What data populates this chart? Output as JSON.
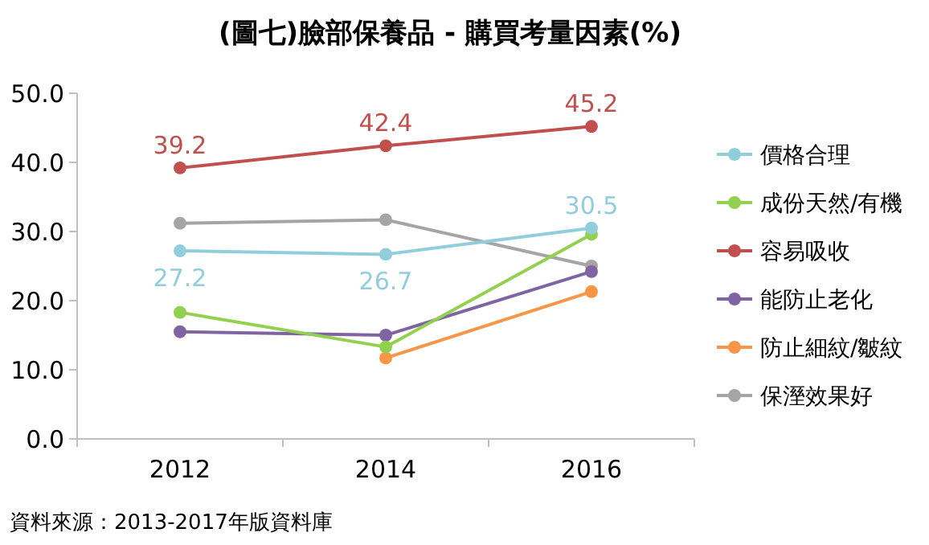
{
  "chart_data": {
    "type": "line",
    "title": "(圖七)臉部保養品 - 購買考量因素(%)",
    "categories": [
      "2012",
      "2014",
      "2016"
    ],
    "series": [
      {
        "name": "價格合理",
        "color": "#92cddc",
        "values": [
          27.2,
          26.7,
          30.5
        ],
        "value_labels": [
          "27.2",
          "26.7",
          "30.5"
        ]
      },
      {
        "name": "成份天然/有機",
        "color": "#92d050",
        "values": [
          18.3,
          13.3,
          29.6
        ]
      },
      {
        "name": "容易吸收",
        "color": "#c0504d",
        "values": [
          39.2,
          42.4,
          45.2
        ],
        "value_labels": [
          "39.2",
          "42.4",
          "45.2"
        ]
      },
      {
        "name": "能防止老化",
        "color": "#8064a2",
        "values": [
          15.5,
          15.0,
          24.2
        ]
      },
      {
        "name": "防止細紋/皺紋",
        "color": "#f79646",
        "values": [
          null,
          11.7,
          21.3
        ]
      },
      {
        "name": "保溼效果好",
        "color": "#a5a5a5",
        "values": [
          31.2,
          31.7,
          25.0
        ]
      }
    ],
    "ylim": [
      0,
      50
    ],
    "yticks": [
      {
        "value": 0,
        "label": "0.0"
      },
      {
        "value": 10,
        "label": "10.0"
      },
      {
        "value": 20,
        "label": "20.0"
      },
      {
        "value": 30,
        "label": "30.0"
      },
      {
        "value": 40,
        "label": "40.0"
      },
      {
        "value": 50,
        "label": "50.0"
      }
    ],
    "grid": false,
    "legend": "right",
    "marker": "circle",
    "line_style": "solid",
    "annotations": [
      "資料來源：2013-2017年版資料庫"
    ]
  }
}
